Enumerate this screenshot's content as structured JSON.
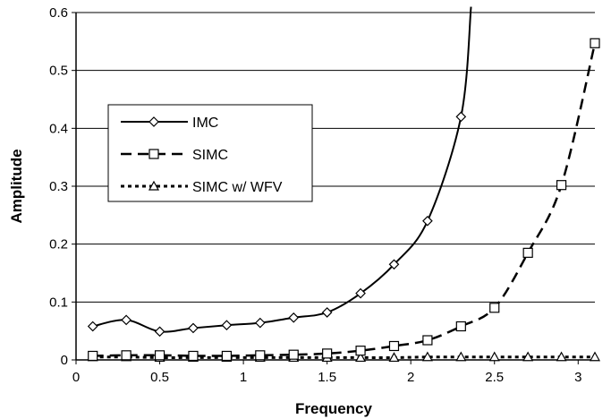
{
  "chart_data": {
    "type": "line",
    "title": "",
    "xlabel": "Frequency",
    "ylabel": "Amplitude",
    "xlim": [
      0,
      3.1
    ],
    "ylim": [
      0,
      0.6
    ],
    "x_ticks": [
      "0",
      "0.5",
      "1",
      "1.5",
      "2",
      "2.5",
      "3"
    ],
    "y_ticks": [
      "0",
      "0.1",
      "0.2",
      "0.3",
      "0.4",
      "0.5",
      "0.6"
    ],
    "grid": "horizontal",
    "legend_position": "left-center",
    "series": [
      {
        "name": "IMC",
        "line": "solid",
        "marker": "diamond",
        "x": [
          0.1,
          0.3,
          0.5,
          0.7,
          0.9,
          1.1,
          1.3,
          1.5,
          1.7,
          1.9,
          2.1,
          2.3
        ],
        "y": [
          0.058,
          0.069,
          0.049,
          0.055,
          0.06,
          0.064,
          0.073,
          0.082,
          0.115,
          0.165,
          0.24,
          0.42
        ],
        "curve_extension": {
          "x": [
            2.36
          ],
          "y": [
            0.61
          ]
        }
      },
      {
        "name": "SIMC",
        "line": "dashed",
        "marker": "square",
        "x": [
          0.1,
          0.3,
          0.5,
          0.7,
          0.9,
          1.1,
          1.3,
          1.5,
          1.7,
          1.9,
          2.1,
          2.3,
          2.5,
          2.7,
          2.9,
          3.1
        ],
        "y": [
          0.007,
          0.008,
          0.008,
          0.007,
          0.007,
          0.008,
          0.009,
          0.011,
          0.016,
          0.024,
          0.034,
          0.058,
          0.09,
          0.185,
          0.302,
          0.547
        ]
      },
      {
        "name": "SIMC w/ WFV",
        "line": "dotted",
        "marker": "triangle",
        "x": [
          0.1,
          0.3,
          0.5,
          0.7,
          0.9,
          1.1,
          1.3,
          1.5,
          1.7,
          1.9,
          2.1,
          2.3,
          2.5,
          2.7,
          2.9,
          3.1
        ],
        "y": [
          0.005,
          0.005,
          0.004,
          0.004,
          0.004,
          0.004,
          0.004,
          0.004,
          0.004,
          0.004,
          0.005,
          0.005,
          0.005,
          0.005,
          0.005,
          0.005
        ]
      }
    ]
  }
}
